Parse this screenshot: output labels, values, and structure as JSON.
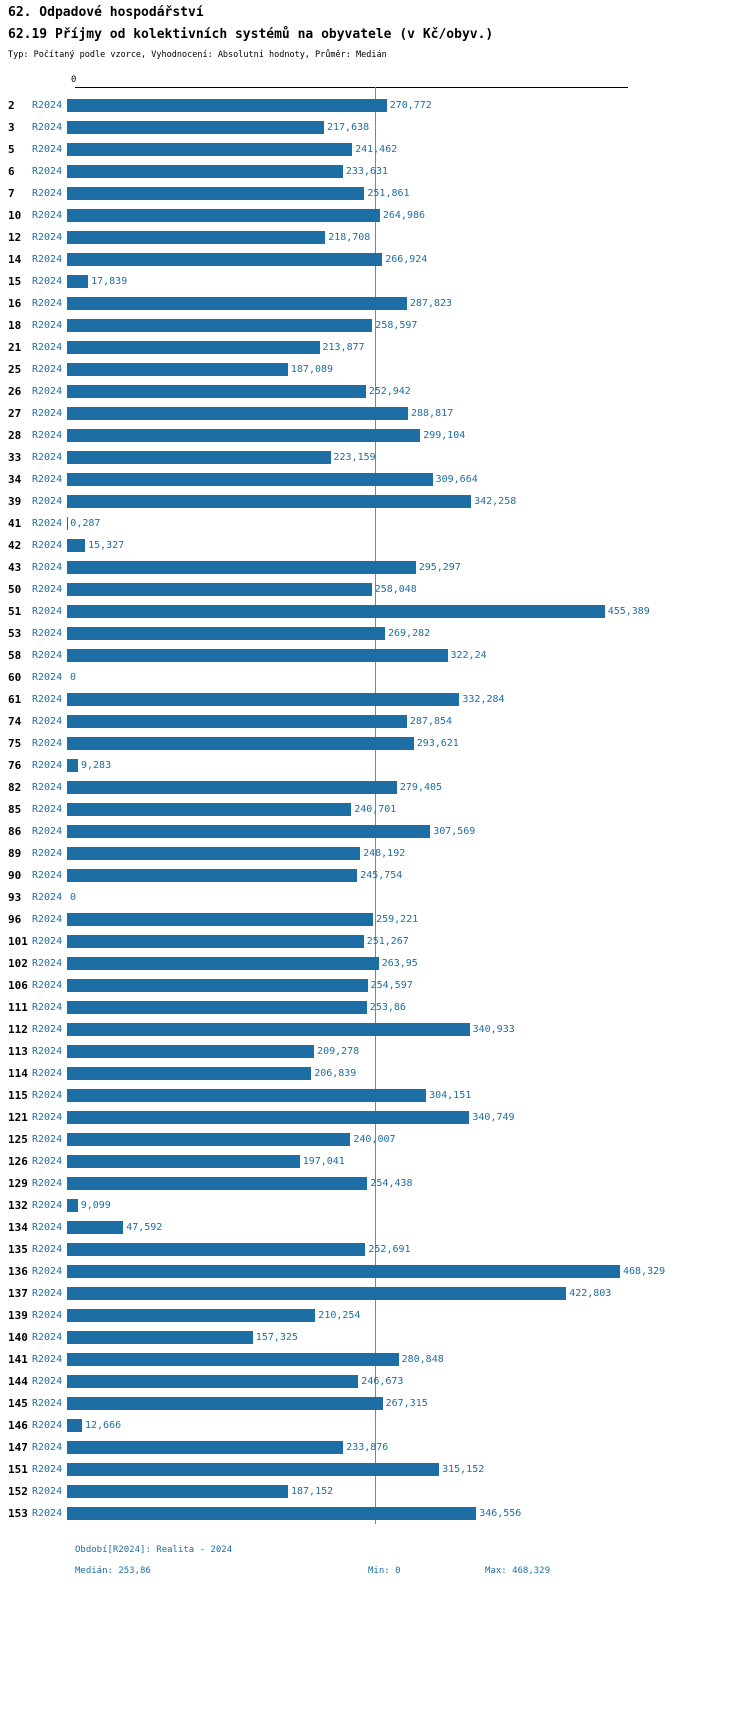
{
  "header": {
    "title1": "62. Odpadové hospodářství",
    "title2": "62.19 Příjmy od kolektivních systémů na obyvatele (v Kč/obyv.)",
    "subtitle": "Typ: Počítaný podle vzorce, Vyhodnocení: Absolutní hodnoty, Průměr: Medián"
  },
  "chart_data": {
    "type": "bar",
    "orientation": "horizontal",
    "title": "62.19 Příjmy od kolektivních systémů na obyvatele (v Kč/obyv.)",
    "unit": "Kč/obyv.",
    "series_label": "R2024",
    "axis_zero_label": "0",
    "xlim": [
      0,
      468.329
    ],
    "grid": false,
    "legend": "none",
    "bar_color": "#1c6ea4",
    "median_line_color": "#5f8fae",
    "median": 253.86,
    "stats": {
      "median": 253.86,
      "min": 0,
      "max": 468.329
    },
    "rows": [
      {
        "id": "2",
        "value": 270.772,
        "value_label": "270,772"
      },
      {
        "id": "3",
        "value": 217.638,
        "value_label": "217,638"
      },
      {
        "id": "5",
        "value": 241.462,
        "value_label": "241,462"
      },
      {
        "id": "6",
        "value": 233.631,
        "value_label": "233,631"
      },
      {
        "id": "7",
        "value": 251.861,
        "value_label": "251,861"
      },
      {
        "id": "10",
        "value": 264.986,
        "value_label": "264,986"
      },
      {
        "id": "12",
        "value": 218.708,
        "value_label": "218,708"
      },
      {
        "id": "14",
        "value": 266.924,
        "value_label": "266,924"
      },
      {
        "id": "15",
        "value": 17.839,
        "value_label": "17,839"
      },
      {
        "id": "16",
        "value": 287.823,
        "value_label": "287,823"
      },
      {
        "id": "18",
        "value": 258.597,
        "value_label": "258,597"
      },
      {
        "id": "21",
        "value": 213.877,
        "value_label": "213,877"
      },
      {
        "id": "25",
        "value": 187.089,
        "value_label": "187,089"
      },
      {
        "id": "26",
        "value": 252.942,
        "value_label": "252,942"
      },
      {
        "id": "27",
        "value": 288.817,
        "value_label": "288,817"
      },
      {
        "id": "28",
        "value": 299.104,
        "value_label": "299,104"
      },
      {
        "id": "33",
        "value": 223.159,
        "value_label": "223,159"
      },
      {
        "id": "34",
        "value": 309.664,
        "value_label": "309,664"
      },
      {
        "id": "39",
        "value": 342.258,
        "value_label": "342,258"
      },
      {
        "id": "41",
        "value": 0.287,
        "value_label": "0,287"
      },
      {
        "id": "42",
        "value": 15.327,
        "value_label": "15,327"
      },
      {
        "id": "43",
        "value": 295.297,
        "value_label": "295,297"
      },
      {
        "id": "50",
        "value": 258.048,
        "value_label": "258,048"
      },
      {
        "id": "51",
        "value": 455.389,
        "value_label": "455,389"
      },
      {
        "id": "53",
        "value": 269.282,
        "value_label": "269,282"
      },
      {
        "id": "58",
        "value": 322.24,
        "value_label": "322,24"
      },
      {
        "id": "60",
        "value": 0,
        "value_label": "0"
      },
      {
        "id": "61",
        "value": 332.284,
        "value_label": "332,284"
      },
      {
        "id": "74",
        "value": 287.854,
        "value_label": "287,854"
      },
      {
        "id": "75",
        "value": 293.621,
        "value_label": "293,621"
      },
      {
        "id": "76",
        "value": 9.283,
        "value_label": "9,283"
      },
      {
        "id": "82",
        "value": 279.405,
        "value_label": "279,405"
      },
      {
        "id": "85",
        "value": 240.701,
        "value_label": "240,701"
      },
      {
        "id": "86",
        "value": 307.569,
        "value_label": "307,569"
      },
      {
        "id": "89",
        "value": 248.192,
        "value_label": "248,192"
      },
      {
        "id": "90",
        "value": 245.754,
        "value_label": "245,754"
      },
      {
        "id": "93",
        "value": 0,
        "value_label": "0"
      },
      {
        "id": "96",
        "value": 259.221,
        "value_label": "259,221"
      },
      {
        "id": "101",
        "value": 251.267,
        "value_label": "251,267"
      },
      {
        "id": "102",
        "value": 263.95,
        "value_label": "263,95"
      },
      {
        "id": "106",
        "value": 254.597,
        "value_label": "254,597"
      },
      {
        "id": "111",
        "value": 253.86,
        "value_label": "253,86"
      },
      {
        "id": "112",
        "value": 340.933,
        "value_label": "340,933"
      },
      {
        "id": "113",
        "value": 209.278,
        "value_label": "209,278"
      },
      {
        "id": "114",
        "value": 206.839,
        "value_label": "206,839"
      },
      {
        "id": "115",
        "value": 304.151,
        "value_label": "304,151"
      },
      {
        "id": "121",
        "value": 340.749,
        "value_label": "340,749"
      },
      {
        "id": "125",
        "value": 240.007,
        "value_label": "240,007"
      },
      {
        "id": "126",
        "value": 197.041,
        "value_label": "197,041"
      },
      {
        "id": "129",
        "value": 254.438,
        "value_label": "254,438"
      },
      {
        "id": "132",
        "value": 9.099,
        "value_label": "9,099"
      },
      {
        "id": "134",
        "value": 47.592,
        "value_label": "47,592"
      },
      {
        "id": "135",
        "value": 252.691,
        "value_label": "252,691"
      },
      {
        "id": "136",
        "value": 468.329,
        "value_label": "468,329"
      },
      {
        "id": "137",
        "value": 422.803,
        "value_label": "422,803"
      },
      {
        "id": "139",
        "value": 210.254,
        "value_label": "210,254"
      },
      {
        "id": "140",
        "value": 157.325,
        "value_label": "157,325"
      },
      {
        "id": "141",
        "value": 280.848,
        "value_label": "280,848"
      },
      {
        "id": "144",
        "value": 246.673,
        "value_label": "246,673"
      },
      {
        "id": "145",
        "value": 267.315,
        "value_label": "267,315"
      },
      {
        "id": "146",
        "value": 12.666,
        "value_label": "12,666"
      },
      {
        "id": "147",
        "value": 233.876,
        "value_label": "233,876"
      },
      {
        "id": "151",
        "value": 315.152,
        "value_label": "315,152"
      },
      {
        "id": "152",
        "value": 187.152,
        "value_label": "187,152"
      },
      {
        "id": "153",
        "value": 346.556,
        "value_label": "346,556"
      }
    ]
  },
  "footer": {
    "period": "Období[R2024]: Realita - 2024",
    "median": "Medián: 253,86",
    "min": "Min: 0",
    "max": "Max: 468,329"
  }
}
